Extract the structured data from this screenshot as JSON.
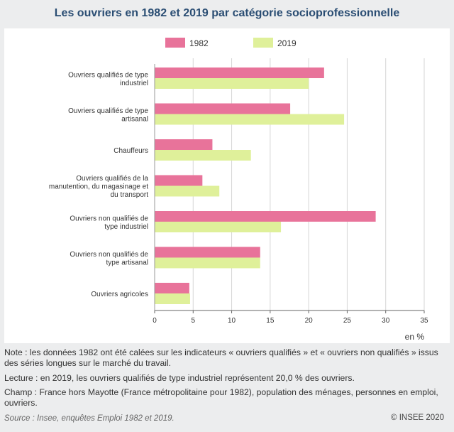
{
  "title": "Les ouvriers en 1982 et 2019 par catégorie socioprofessionnelle",
  "notes": {
    "note": "Note : les données 1982 ont été calées sur les indicateurs « ouvriers qualifiés » et « ouvriers non qualifiés » issus des séries longues sur le marché du travail.",
    "lecture": "Lecture : en 2019, les ouvriers qualifiés de type industriel représentent 20,0 % des ouvriers.",
    "champ": "Champ : France hors Mayotte (France métropolitaine pour 1982), population des ménages, personnes en emploi, ouvriers.",
    "source": "Source : Insee, enquêtes Emploi 1982 et 2019.",
    "copyright": "© INSEE 2020"
  },
  "colors": {
    "s1982": "#e8739a",
    "s2019": "#dff09a",
    "grid": "#d6d6d6",
    "axis": "#666666"
  },
  "chart_data": {
    "type": "bar",
    "orientation": "horizontal",
    "title": "Les ouvriers en 1982 et 2019 par catégorie socioprofessionnelle",
    "xlabel": "en %",
    "ylabel": "",
    "xlim": [
      0,
      35
    ],
    "xticks": [
      0,
      5,
      10,
      15,
      20,
      25,
      30,
      35
    ],
    "grid": true,
    "legend_position": "top",
    "categories": [
      [
        "Ouvriers qualifiés de type",
        "industriel"
      ],
      [
        "Ouvriers qualifiés de type",
        "artisanal"
      ],
      [
        "Chauffeurs"
      ],
      [
        "Ouvriers qualifiés de la",
        "manutention, du magasinage et",
        "du transport"
      ],
      [
        "Ouvriers non qualifiés de",
        "type industriel"
      ],
      [
        "Ouvriers non qualifiés de",
        "type artisanal"
      ],
      [
        "Ouvriers agricoles"
      ]
    ],
    "series": [
      {
        "name": "1982",
        "values": [
          22.0,
          17.6,
          7.5,
          6.2,
          28.7,
          13.7,
          4.5
        ]
      },
      {
        "name": "2019",
        "values": [
          20.0,
          24.6,
          12.5,
          8.4,
          16.4,
          13.7,
          4.6
        ]
      }
    ]
  }
}
